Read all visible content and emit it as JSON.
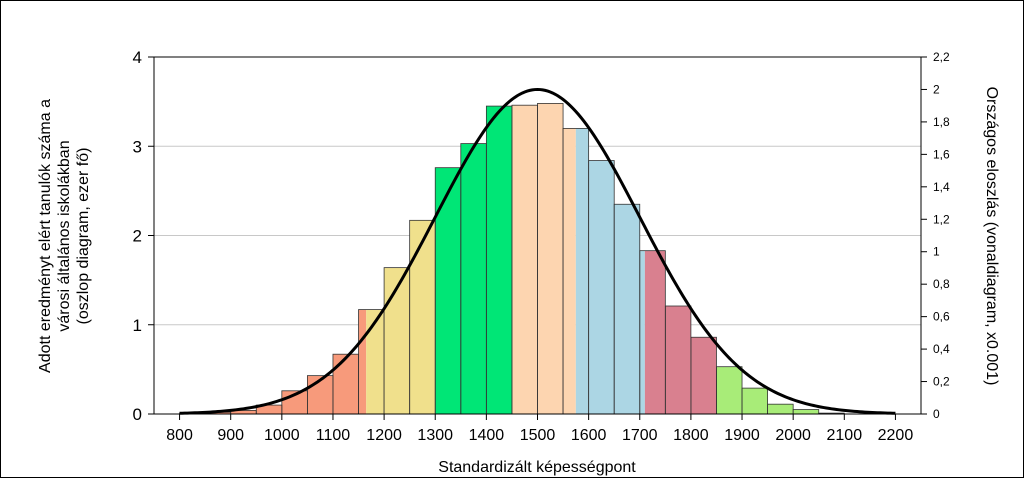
{
  "chart_data": {
    "type": "bar",
    "title": "",
    "xlabel": "Standardizált képességpont",
    "ylabel_lines": [
      "Adott eredményt elért tanulók száma a",
      "városi általános iskolákban",
      "(oszlop diagram, ezer fő)"
    ],
    "y2label": "Országos eloszlás (vonaldiagram, x0.001)",
    "xlim": [
      750,
      2250
    ],
    "ylim": [
      0,
      4
    ],
    "y2lim": [
      0,
      2.2
    ],
    "x_ticks": [
      {
        "value": 800,
        "label": "800"
      },
      {
        "value": 900,
        "label": "900"
      },
      {
        "value": 1000,
        "label": "1000"
      },
      {
        "value": 1100,
        "label": "1100"
      },
      {
        "value": 1200,
        "label": "1200"
      },
      {
        "value": 1300,
        "label": "1300"
      },
      {
        "value": 1400,
        "label": "1400"
      },
      {
        "value": 1500,
        "label": "1500"
      },
      {
        "value": 1600,
        "label": "1600"
      },
      {
        "value": 1700,
        "label": "1700"
      },
      {
        "value": 1800,
        "label": "1800"
      },
      {
        "value": 1900,
        "label": "1900"
      },
      {
        "value": 2000,
        "label": "2000"
      },
      {
        "value": 2100,
        "label": "2100"
      },
      {
        "value": 2200,
        "label": "2200"
      }
    ],
    "y_ticks": [
      {
        "value": 0,
        "label": "0"
      },
      {
        "value": 1,
        "label": "1"
      },
      {
        "value": 2,
        "label": "2"
      },
      {
        "value": 3,
        "label": "3"
      },
      {
        "value": 4,
        "label": "4"
      }
    ],
    "y2_ticks": [
      {
        "value": 0,
        "label": "0"
      },
      {
        "value": 0.2,
        "label": "0,2"
      },
      {
        "value": 0.4,
        "label": "0,4"
      },
      {
        "value": 0.6,
        "label": "0,6"
      },
      {
        "value": 0.8,
        "label": "0,8"
      },
      {
        "value": 1,
        "label": "1"
      },
      {
        "value": 1.2,
        "label": "1,2"
      },
      {
        "value": 1.4,
        "label": "1,4"
      },
      {
        "value": 1.6,
        "label": "1,6"
      },
      {
        "value": 1.8,
        "label": "1,8"
      },
      {
        "value": 2,
        "label": "2"
      },
      {
        "value": 2.2,
        "label": "2,2"
      }
    ],
    "bin_width": 50,
    "bars": [
      {
        "x": 775,
        "value": 0.0
      },
      {
        "x": 825,
        "value": 0.01
      },
      {
        "x": 875,
        "value": 0.02
      },
      {
        "x": 925,
        "value": 0.04
      },
      {
        "x": 975,
        "value": 0.1
      },
      {
        "x": 1025,
        "value": 0.26
      },
      {
        "x": 1075,
        "value": 0.43
      },
      {
        "x": 1125,
        "value": 0.67
      },
      {
        "x": 1175,
        "value": 1.17
      },
      {
        "x": 1225,
        "value": 1.64
      },
      {
        "x": 1275,
        "value": 2.17
      },
      {
        "x": 1325,
        "value": 2.76
      },
      {
        "x": 1375,
        "value": 3.03
      },
      {
        "x": 1425,
        "value": 3.45
      },
      {
        "x": 1475,
        "value": 3.46
      },
      {
        "x": 1525,
        "value": 3.48
      },
      {
        "x": 1575,
        "value": 3.2
      },
      {
        "x": 1625,
        "value": 2.84
      },
      {
        "x": 1675,
        "value": 2.35
      },
      {
        "x": 1725,
        "value": 1.83
      },
      {
        "x": 1775,
        "value": 1.21
      },
      {
        "x": 1825,
        "value": 0.86
      },
      {
        "x": 1875,
        "value": 0.53
      },
      {
        "x": 1925,
        "value": 0.29
      },
      {
        "x": 1975,
        "value": 0.11
      },
      {
        "x": 2025,
        "value": 0.05
      },
      {
        "x": 2075,
        "value": 0.01
      },
      {
        "x": 2125,
        "value": 0.0
      },
      {
        "x": 2175,
        "value": 0.0
      }
    ],
    "fill_bands": [
      {
        "from": 750,
        "to": 1165,
        "color": "#f79a7b"
      },
      {
        "from": 1165,
        "to": 1300,
        "color": "#f0e08c"
      },
      {
        "from": 1300,
        "to": 1450,
        "color": "#00e676"
      },
      {
        "from": 1450,
        "to": 1575,
        "color": "#fdd5b0"
      },
      {
        "from": 1575,
        "to": 1710,
        "color": "#acd6e4"
      },
      {
        "from": 1710,
        "to": 1850,
        "color": "#d9808f"
      },
      {
        "from": 1850,
        "to": 2250,
        "color": "#a8ec78"
      }
    ],
    "line_series": {
      "name": "",
      "mean": 1500,
      "sd": 200,
      "peak": 2.0,
      "color": "#000000"
    },
    "grid": true
  }
}
